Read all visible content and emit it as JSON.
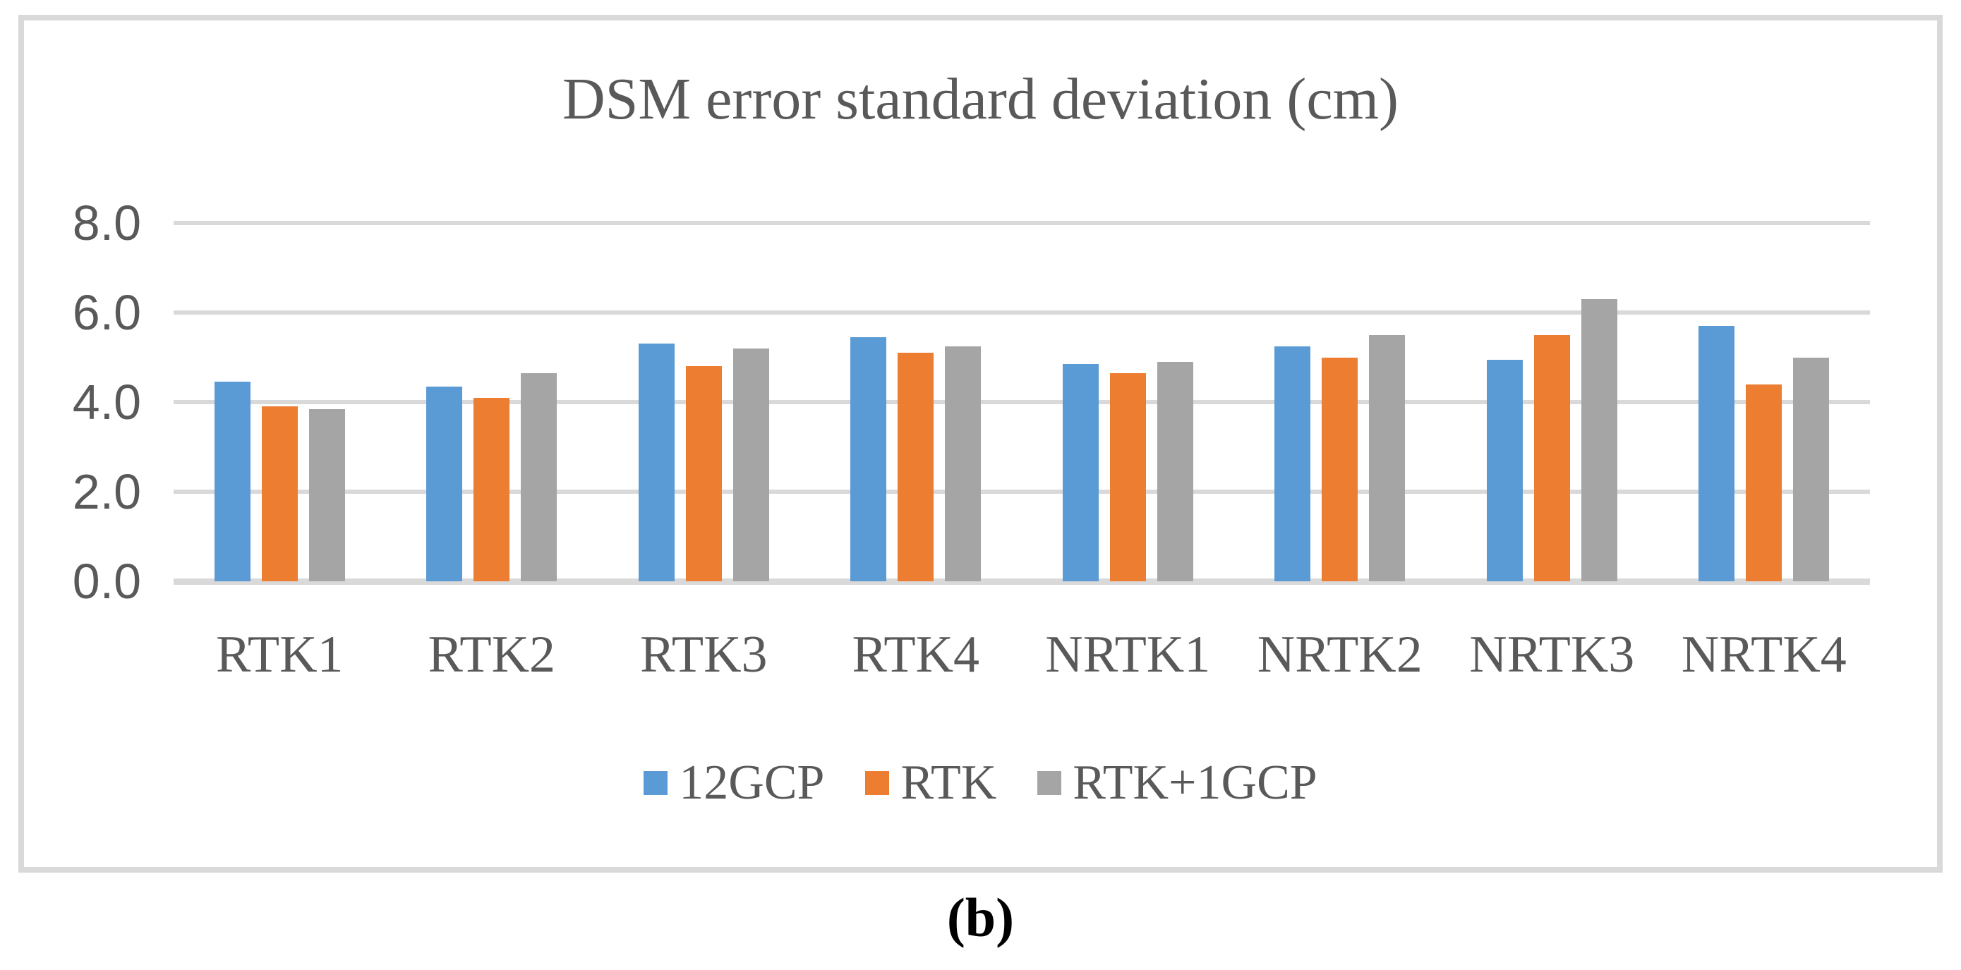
{
  "figure": {
    "caption": "(b)"
  },
  "colors": {
    "series_blue": "#5B9BD5",
    "series_orange": "#ED7D31",
    "series_gray": "#A5A5A5",
    "gridline": "#D9D9D9",
    "frame_border": "#D9D9D9",
    "text_gray": "#595959",
    "caption_black": "#000000"
  },
  "chart_data": {
    "type": "bar",
    "title": "DSM error standard deviation (cm)",
    "xlabel": "",
    "ylabel": "",
    "categories": [
      "RTK1",
      "RTK2",
      "RTK3",
      "RTK4",
      "NRTK1",
      "NRTK2",
      "NRTK3",
      "NRTK4"
    ],
    "series": [
      {
        "name": "12GCP",
        "color": "#5B9BD5",
        "values": [
          4.45,
          4.35,
          5.3,
          5.45,
          4.85,
          5.25,
          4.95,
          5.7
        ]
      },
      {
        "name": "RTK",
        "color": "#ED7D31",
        "values": [
          3.9,
          4.1,
          4.8,
          5.1,
          4.65,
          5.0,
          5.5,
          4.4
        ]
      },
      {
        "name": "RTK+1GCP",
        "color": "#A5A5A5",
        "values": [
          3.85,
          4.65,
          5.2,
          5.25,
          4.9,
          5.5,
          6.3,
          5.0
        ]
      }
    ],
    "ylim": [
      0,
      8
    ],
    "yticks": [
      0,
      2,
      4,
      6,
      8
    ],
    "ytick_labels": [
      "0.0",
      "2.0",
      "4.0",
      "6.0",
      "8.0"
    ],
    "grid": true,
    "legend_position": "bottom"
  }
}
